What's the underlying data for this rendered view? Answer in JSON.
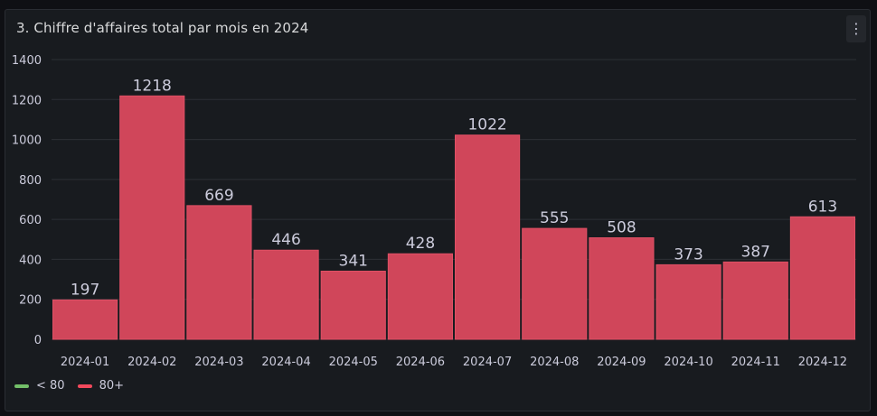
{
  "panel": {
    "title": "3. Chiffre d'affaires total par mois en 2024",
    "menu_icon": "vertical-dots-icon"
  },
  "colors": {
    "bar": "#d0465a",
    "low": "#73bf69",
    "high": "#f2495c",
    "grid": "#2c3036",
    "text": "#ccccdc"
  },
  "legend": [
    {
      "label": "< 80",
      "color": "#73bf69"
    },
    {
      "label": "80+",
      "color": "#f2495c"
    }
  ],
  "chart_data": {
    "type": "bar",
    "title": "3. Chiffre d'affaires total par mois en 2024",
    "categories": [
      "2024-01",
      "2024-02",
      "2024-03",
      "2024-04",
      "2024-05",
      "2024-06",
      "2024-07",
      "2024-08",
      "2024-09",
      "2024-10",
      "2024-11",
      "2024-12"
    ],
    "values": [
      197,
      1218,
      669,
      446,
      341,
      428,
      1022,
      555,
      508,
      373,
      387,
      613
    ],
    "ylim": [
      0,
      1400
    ],
    "yticks": [
      0,
      200,
      400,
      600,
      800,
      1000,
      1200,
      1400
    ],
    "grid": true,
    "legend_position": "bottom-left"
  }
}
